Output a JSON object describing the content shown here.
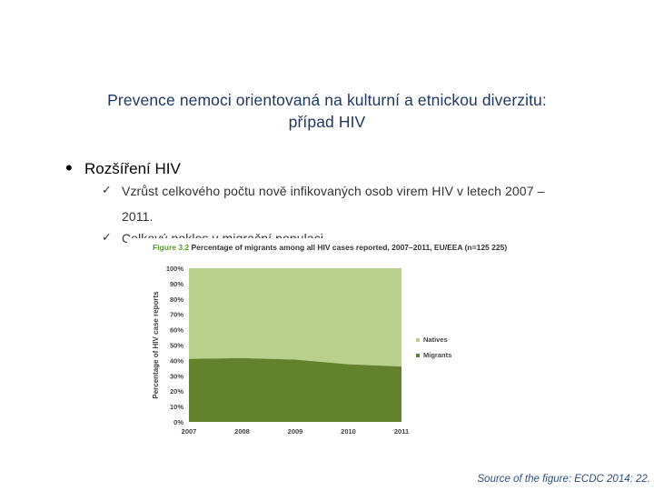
{
  "title_line1": "Prevence nemoci orientovaná na kulturní a etnickou diverzitu:",
  "title_line2": "případ HIV",
  "bullet": {
    "marker": "•",
    "text": "Rozšíření HIV"
  },
  "subbullets": [
    {
      "marker": "ü",
      "text": "Vzrůst celkového počtu nově infikovaných osob virem HIV  v letech 2007 –"
    },
    {
      "marker": "",
      "text": "2011."
    },
    {
      "marker": "ü",
      "text": "Celkový pokles v migrační populaci"
    }
  ],
  "figure": {
    "caption_label": "Figure 3.2",
    "caption_text": "Percentage of migrants among all HIV cases reported, 2007–2011, EU/EEA (n=125 225)"
  },
  "colors": {
    "natives": "#b8d08c",
    "migrants": "#62822e",
    "caption": "#5a9a2a",
    "title": "#1f3864"
  },
  "chart_data": {
    "type": "area",
    "x": [
      2007,
      2008,
      2009,
      2010,
      2011
    ],
    "series": [
      {
        "name": "Migrants",
        "values": [
          41,
          41.5,
          40.5,
          37.5,
          36
        ]
      },
      {
        "name": "Natives",
        "values": [
          59,
          58.5,
          59.5,
          62.5,
          64
        ]
      }
    ],
    "ylabel": "Percentage of HIV case reports",
    "ylim": [
      0,
      100
    ],
    "yticks": [
      "0%",
      "10%",
      "20%",
      "30%",
      "40%",
      "50%",
      "60%",
      "70%",
      "80%",
      "90%",
      "100%"
    ],
    "xticks": [
      "2007",
      "2008",
      "2009",
      "2010",
      "2011"
    ],
    "legend": [
      "Natives",
      "Migrants"
    ],
    "stacked": true,
    "legend_position": "right"
  },
  "source": "Source of the figure: ECDC 2014: 22."
}
